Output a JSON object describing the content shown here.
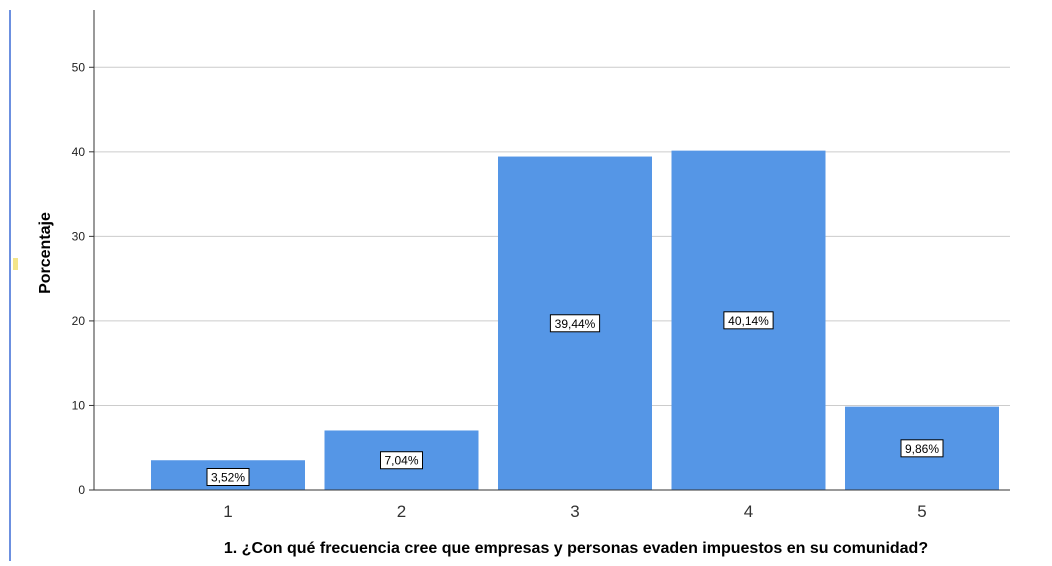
{
  "chart_data": {
    "type": "bar",
    "xlabel": "1. ¿Con qué frecuencia cree que empresas y personas evaden impuestos en su comunidad?",
    "ylabel": "Porcentaje",
    "categories": [
      "1",
      "2",
      "3",
      "4",
      "5"
    ],
    "values": [
      3.52,
      7.04,
      39.44,
      40.14,
      9.86
    ],
    "data_labels": [
      "3,52%",
      "7,04%",
      "39,44%",
      "40,14%",
      "9,86%"
    ],
    "ylim": [
      0,
      55
    ],
    "yticks": [
      0,
      10,
      20,
      30,
      40,
      50
    ],
    "grid": true,
    "legend": "none",
    "colors": {
      "bar": "#5596e6",
      "grid": "#cccccc",
      "axis": "#333333",
      "left_border": "#3b6bd6",
      "marker": "#f3e58a"
    }
  }
}
